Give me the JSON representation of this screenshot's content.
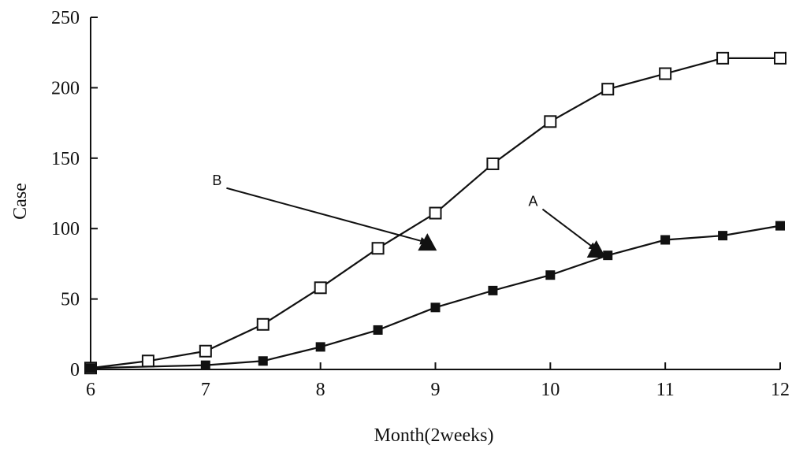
{
  "chart_data": {
    "type": "line",
    "xlabel": "Month(2weeks)",
    "ylabel": "Case",
    "xlim": [
      6,
      12
    ],
    "ylim": [
      0,
      250
    ],
    "xticks": [
      6,
      7,
      8,
      9,
      10,
      11,
      12
    ],
    "yticks": [
      0,
      50,
      100,
      150,
      200,
      250
    ],
    "grid": false,
    "series": [
      {
        "marker": "open-square",
        "x": [
          6,
          6.5,
          7,
          7.5,
          8,
          8.5,
          9,
          9.5,
          10,
          10.5,
          11,
          11.5,
          12
        ],
        "y": [
          1,
          6,
          13,
          32,
          58,
          86,
          111,
          146,
          176,
          199,
          210,
          221,
          221
        ]
      },
      {
        "marker": "filled-square",
        "x": [
          6,
          7,
          7.5,
          8,
          8.5,
          9,
          9.5,
          10,
          10.5,
          11,
          11.5,
          12
        ],
        "y": [
          1,
          3,
          6,
          16,
          28,
          44,
          56,
          67,
          81,
          92,
          95,
          102
        ]
      }
    ],
    "annotations": [
      {
        "text": "B",
        "x": 7.1,
        "y": 131,
        "arrow_to": [
          8.93,
          90
        ]
      },
      {
        "text": "A",
        "x": 9.85,
        "y": 116,
        "arrow_to": [
          10.4,
          85
        ]
      }
    ]
  }
}
